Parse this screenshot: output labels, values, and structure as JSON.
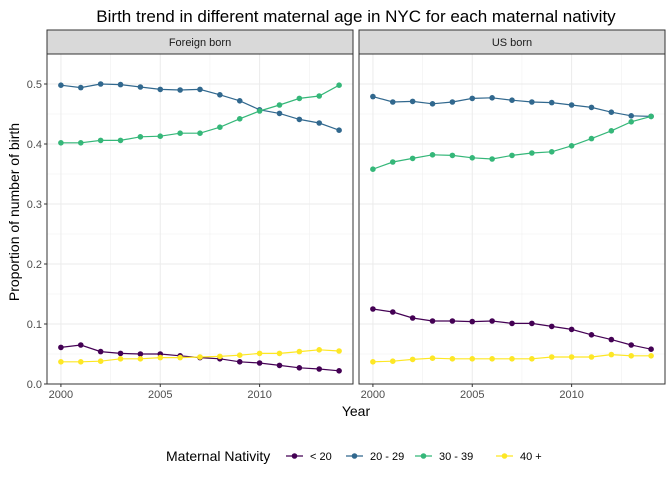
{
  "chart_data": {
    "type": "line",
    "title": "Birth trend in different maternal age in NYC for each maternal nativity",
    "xlabel": "Year",
    "ylabel": "Proportion of number of  birth",
    "xlim": [
      1999.3,
      2014.7
    ],
    "ylim": [
      0,
      0.55
    ],
    "x_ticks": [
      2000,
      2005,
      2010
    ],
    "y_ticks": [
      0.0,
      0.1,
      0.2,
      0.3,
      0.4,
      0.5
    ],
    "x_tick_labels": [
      "2000",
      "2005",
      "2010"
    ],
    "y_tick_labels": [
      "0.0",
      "0.1",
      "0.2",
      "0.3",
      "0.4",
      "0.5"
    ],
    "grid": true,
    "legend": {
      "title": "Maternal Nativity",
      "position": "bottom",
      "entries": [
        "< 20",
        "20 - 29",
        "30 - 39",
        "40 +"
      ]
    },
    "colors": {
      "< 20": "#440154",
      "20 - 29": "#31688e",
      "30 - 39": "#35b779",
      "40 +": "#fde725"
    },
    "x": [
      2000,
      2001,
      2002,
      2003,
      2004,
      2005,
      2006,
      2007,
      2008,
      2009,
      2010,
      2011,
      2012,
      2013,
      2014
    ],
    "panels": [
      {
        "name": "Foreign born",
        "series": [
          {
            "name": "< 20",
            "values": [
              0.061,
              0.065,
              0.054,
              0.051,
              0.05,
              0.05,
              0.047,
              0.044,
              0.042,
              0.037,
              0.035,
              0.031,
              0.027,
              0.025,
              0.022
            ]
          },
          {
            "name": "20 - 29",
            "values": [
              0.498,
              0.494,
              0.5,
              0.499,
              0.495,
              0.491,
              0.49,
              0.491,
              0.482,
              0.472,
              0.457,
              0.451,
              0.441,
              0.435,
              0.423
            ]
          },
          {
            "name": "30 - 39",
            "values": [
              0.402,
              0.402,
              0.406,
              0.406,
              0.412,
              0.413,
              0.418,
              0.418,
              0.428,
              0.442,
              0.455,
              0.465,
              0.476,
              0.48,
              0.498
            ]
          },
          {
            "name": "40 +",
            "values": [
              0.037,
              0.037,
              0.038,
              0.042,
              0.042,
              0.044,
              0.044,
              0.045,
              0.046,
              0.048,
              0.051,
              0.051,
              0.054,
              0.057,
              0.055
            ]
          }
        ]
      },
      {
        "name": "US born",
        "series": [
          {
            "name": "< 20",
            "values": [
              0.125,
              0.12,
              0.11,
              0.105,
              0.105,
              0.104,
              0.105,
              0.101,
              0.101,
              0.096,
              0.091,
              0.082,
              0.074,
              0.065,
              0.058
            ]
          },
          {
            "name": "20 - 29",
            "values": [
              0.479,
              0.47,
              0.471,
              0.467,
              0.47,
              0.476,
              0.477,
              0.473,
              0.47,
              0.469,
              0.465,
              0.461,
              0.453,
              0.447,
              0.446
            ]
          },
          {
            "name": "30 - 39",
            "values": [
              0.358,
              0.37,
              0.376,
              0.382,
              0.381,
              0.377,
              0.375,
              0.381,
              0.385,
              0.387,
              0.397,
              0.409,
              0.422,
              0.437,
              0.446
            ]
          },
          {
            "name": "40 +",
            "values": [
              0.037,
              0.038,
              0.041,
              0.043,
              0.042,
              0.042,
              0.042,
              0.042,
              0.042,
              0.045,
              0.045,
              0.045,
              0.049,
              0.047,
              0.047
            ]
          }
        ]
      }
    ]
  }
}
